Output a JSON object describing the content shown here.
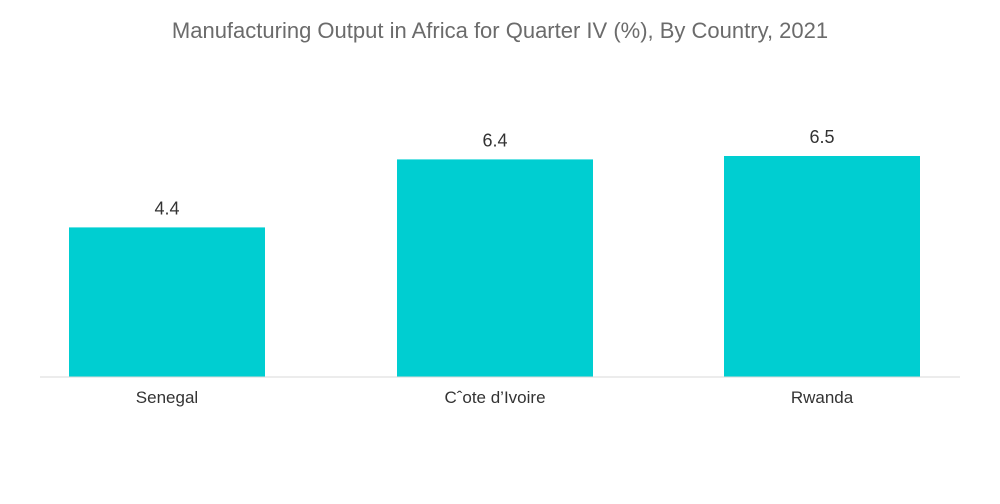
{
  "chart_data": {
    "type": "bar",
    "title": "Manufacturing Output in Africa for Quarter IV (%), By Country, 2021",
    "categories": [
      "Senegal",
      "Cˆote d’Ivoire",
      "Rwanda"
    ],
    "values": [
      4.4,
      6.4,
      6.5
    ],
    "data_labels": [
      "4.4",
      "6.4",
      "6.5"
    ],
    "xlabel": "",
    "ylabel": "",
    "ylim": [
      0,
      6.5
    ],
    "grid": false,
    "legend": "none",
    "bar_color": "#00CED1"
  }
}
